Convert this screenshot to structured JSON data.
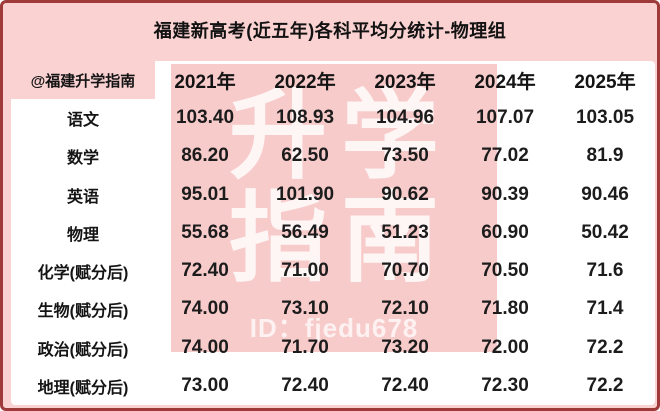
{
  "page": {
    "title": "福建新高考(近五年)各科平均分统计-物理组",
    "colors": {
      "page_pink": "#fbd2d2",
      "border_red": "#9e3a3a",
      "card_white": "#ffffff",
      "watermark_pink": "#f8cbcb",
      "watermark_text_white": "#ffffff",
      "text_black": "#141414"
    }
  },
  "watermark": {
    "line1": "升学",
    "line2": "指南",
    "id_text": "ID：fjedu678"
  },
  "table": {
    "corner_label": "@福建升学指南",
    "year_headers": [
      "2021年",
      "2022年",
      "2023年",
      "2024年",
      "2025年"
    ],
    "rows": [
      {
        "label": "语文",
        "values": [
          "103.40",
          "108.93",
          "104.96",
          "107.07",
          "103.05"
        ]
      },
      {
        "label": "数学",
        "values": [
          "86.20",
          "62.50",
          "73.50",
          "77.02",
          "81.9"
        ]
      },
      {
        "label": "英语",
        "values": [
          "95.01",
          "101.90",
          "90.62",
          "90.39",
          "90.46"
        ]
      },
      {
        "label": "物理",
        "values": [
          "55.68",
          "56.49",
          "51.23",
          "60.90",
          "50.42"
        ]
      },
      {
        "label": "化学(赋分后)",
        "values": [
          "72.40",
          "71.00",
          "70.70",
          "70.50",
          "71.6"
        ]
      },
      {
        "label": "生物(赋分后)",
        "values": [
          "74.00",
          "73.10",
          "72.10",
          "71.80",
          "71.4"
        ]
      },
      {
        "label": "政治(赋分后)",
        "values": [
          "74.00",
          "71.70",
          "73.20",
          "72.00",
          "72.2"
        ]
      },
      {
        "label": "地理(赋分后)",
        "values": [
          "73.00",
          "72.40",
          "72.40",
          "72.30",
          "72.2"
        ]
      }
    ]
  },
  "chart_data": {
    "type": "table",
    "title": "福建新高考(近五年)各科平均分统计-物理组",
    "categories": [
      "2021年",
      "2022年",
      "2023年",
      "2024年",
      "2025年"
    ],
    "series": [
      {
        "name": "语文",
        "values": [
          103.4,
          108.93,
          104.96,
          107.07,
          103.05
        ]
      },
      {
        "name": "数学",
        "values": [
          86.2,
          62.5,
          73.5,
          77.02,
          81.9
        ]
      },
      {
        "name": "英语",
        "values": [
          95.01,
          101.9,
          90.62,
          90.39,
          90.46
        ]
      },
      {
        "name": "物理",
        "values": [
          55.68,
          56.49,
          51.23,
          60.9,
          50.42
        ]
      },
      {
        "name": "化学(赋分后)",
        "values": [
          72.4,
          71.0,
          70.7,
          70.5,
          71.6
        ]
      },
      {
        "name": "生物(赋分后)",
        "values": [
          74.0,
          73.1,
          72.1,
          71.8,
          71.4
        ]
      },
      {
        "name": "政治(赋分后)",
        "values": [
          74.0,
          71.7,
          73.2,
          72.0,
          72.2
        ]
      },
      {
        "name": "地理(赋分后)",
        "values": [
          73.0,
          72.4,
          72.4,
          72.3,
          72.2
        ]
      }
    ],
    "source_watermark": "ID：fjedu678"
  }
}
